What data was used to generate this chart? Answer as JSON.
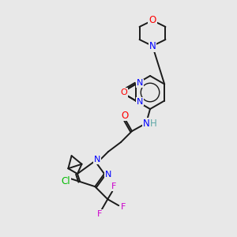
{
  "bg_color": "#e8e8e8",
  "bond_color": "#1a1a1a",
  "atom_colors": {
    "N": "#0000ff",
    "O": "#ff0000",
    "F": "#cc00cc",
    "Cl": "#00bb00",
    "H": "#5fa8a8",
    "C": "#1a1a1a"
  },
  "figsize": [
    3.0,
    3.0
  ],
  "dpi": 100,
  "lw": 1.4,
  "fs": 8.5
}
